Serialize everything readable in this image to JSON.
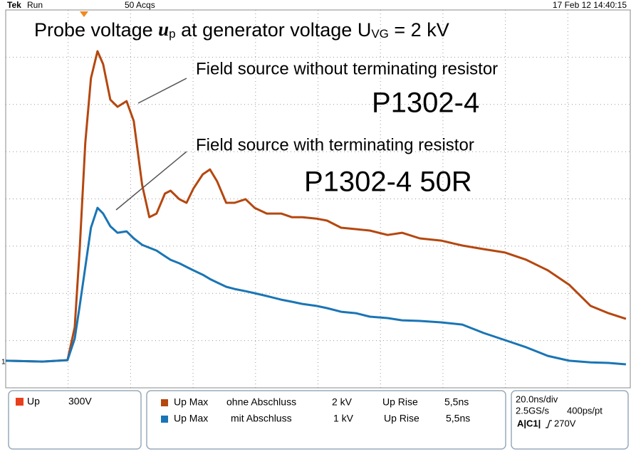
{
  "status_bar": {
    "brand": "Tek",
    "state": "Run",
    "acquisitions": "50 Acqs",
    "timestamp": "17 Feb 12 14:40:15"
  },
  "chart_data": {
    "type": "line",
    "title": {
      "part1": "Probe voltage",
      "var": "u",
      "var_sub": "p",
      "part2": "at generator voltage U",
      "part2_sub": "VG",
      "part3": "= 2 kV"
    },
    "annotations": [
      "Field source without terminating resistor",
      "P1302-4",
      "Field source with terminating resistor",
      "P1302-4 50R"
    ],
    "ground_marker": "1",
    "x": [
      0,
      11.8,
      19.8,
      22.1,
      23.7,
      25.5,
      27.3,
      29.4,
      31.2,
      33.5,
      35.8,
      38.7,
      41.0,
      43.7,
      46.0,
      48.3,
      51.0,
      52.8,
      55.6,
      57.9,
      60.1,
      63.1,
      65.4,
      67.7,
      70.6,
      73.3,
      76.8,
      79.7,
      83.6,
      88.2,
      91.6,
      95.0,
      99.5,
      102.9,
      107.4,
      112.1,
      116.6,
      122.3,
      126.9,
      132.6,
      139.4,
      146.2,
      153.1,
      159.9,
      166.7,
      173.6,
      180.4,
      187.3,
      193.0,
      198.6
    ],
    "series": [
      {
        "name": "ohne Abschluss",
        "color": "#b5470f",
        "values": [
          5,
          0,
          9,
          217,
          714,
          1392,
          1799,
          1971,
          1889,
          1663,
          1618,
          1654,
          1528,
          1121,
          917,
          940,
          1067,
          1085,
          1031,
          1008,
          1098,
          1189,
          1220,
          1144,
          1008,
          1008,
          1031,
          976,
          940,
          940,
          917,
          917,
          908,
          895,
          850,
          841,
          832,
          804,
          818,
          782,
          768,
          737,
          714,
          692,
          646,
          579,
          488,
          353,
          307,
          271
        ]
      },
      {
        "name": "mit Abschluss",
        "color": "#1a75b5",
        "values": [
          5,
          0,
          9,
          145,
          353,
          601,
          850,
          976,
          940,
          859,
          818,
          827,
          782,
          741,
          723,
          705,
          669,
          646,
          624,
          601,
          579,
          551,
          524,
          502,
          475,
          461,
          447,
          434,
          416,
          393,
          380,
          366,
          353,
          339,
          316,
          307,
          285,
          276,
          262,
          258,
          249,
          235,
          181,
          136,
          90,
          36,
          5,
          -5,
          -9,
          -18
        ]
      }
    ],
    "xlim": [
      0,
      200
    ],
    "xticks": [
      0,
      20,
      40,
      60,
      80,
      100,
      120,
      140,
      160,
      180,
      200
    ],
    "ylim": [
      -167,
      2233
    ],
    "yticks": [
      -167,
      133,
      433,
      733,
      1033,
      1333,
      1633,
      1933,
      2233
    ],
    "grid": true
  },
  "readout": {
    "channel": "Up",
    "scale": "300V",
    "measurements": [
      {
        "label": "Up Max",
        "value": "2 kV",
        "label2": "Up Rise",
        "value2": "5,5ns"
      },
      {
        "label": "Up Max",
        "value": "1 kV",
        "label2": "Up Rise",
        "value2": "5,5ns"
      }
    ],
    "timebase": "20.0ns/div",
    "sample_rate": "2.5GS/s",
    "resolution": "400ps/pt",
    "trigger_source": "A|C1|",
    "trigger_level": "270V"
  }
}
